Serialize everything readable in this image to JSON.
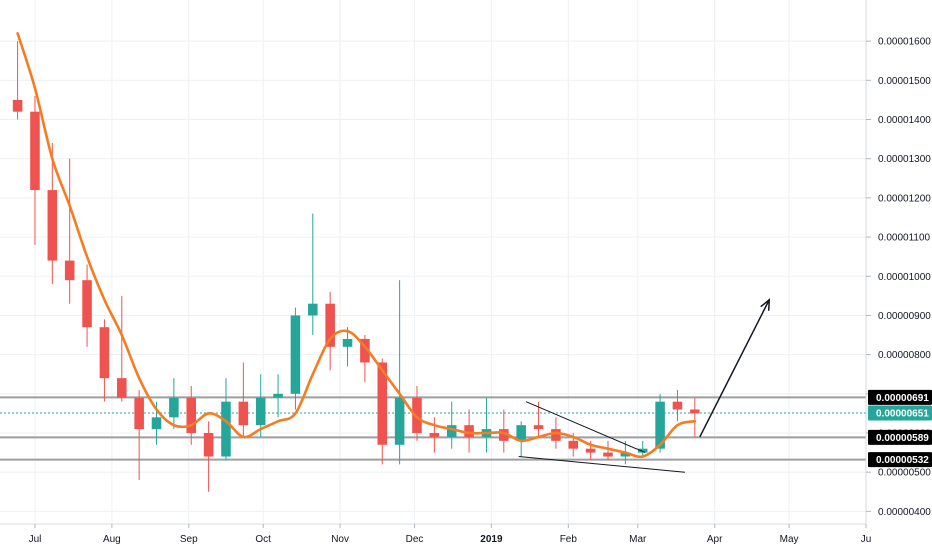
{
  "chart_data": {
    "type": "candlestick",
    "x_ticks": [
      "Jul",
      "Aug",
      "Sep",
      "Oct",
      "Nov",
      "Dec",
      "2019",
      "Feb",
      "Mar",
      "Apr",
      "May",
      "Ju"
    ],
    "y_ticks": [
      "0.00001600",
      "0.00001500",
      "0.00001400",
      "0.00001300",
      "0.00001200",
      "0.00001100",
      "0.00001000",
      "0.00000900",
      "0.00000800",
      "0.00000700",
      "0.00000600",
      "0.00000500",
      "0.00000400"
    ],
    "ylim": [
      3.78e-06,
      1.705e-05
    ],
    "grid": true,
    "horizontal_levels": [
      {
        "label": "0.00000691",
        "value": 6.91e-06
      },
      {
        "label": "0.00000589",
        "value": 5.89e-06
      },
      {
        "label": "0.00000532",
        "value": 5.32e-06
      }
    ],
    "last_price": {
      "label": "0.00000651",
      "value": 6.51e-06
    },
    "moving_average": [
      {
        "date": "2018-06-24",
        "value": 1.62e-05
      },
      {
        "date": "2018-07-01",
        "value": 1.48e-05
      },
      {
        "date": "2018-07-08",
        "value": 1.3e-05
      },
      {
        "date": "2018-07-15",
        "value": 1.18e-05
      },
      {
        "date": "2018-07-22",
        "value": 1.05e-05
      },
      {
        "date": "2018-07-29",
        "value": 9.4e-06
      },
      {
        "date": "2018-08-05",
        "value": 8.5e-06
      },
      {
        "date": "2018-08-12",
        "value": 7.4e-06
      },
      {
        "date": "2018-08-19",
        "value": 6.6e-06
      },
      {
        "date": "2018-08-26",
        "value": 6.2e-06
      },
      {
        "date": "2018-09-02",
        "value": 6.2e-06
      },
      {
        "date": "2018-09-09",
        "value": 6.5e-06
      },
      {
        "date": "2018-09-16",
        "value": 6.3e-06
      },
      {
        "date": "2018-09-23",
        "value": 5.9e-06
      },
      {
        "date": "2018-09-30",
        "value": 6.1e-06
      },
      {
        "date": "2018-10-07",
        "value": 6.3e-06
      },
      {
        "date": "2018-10-14",
        "value": 6.5e-06
      },
      {
        "date": "2018-10-21",
        "value": 7.5e-06
      },
      {
        "date": "2018-10-28",
        "value": 8.4e-06
      },
      {
        "date": "2018-11-04",
        "value": 8.6e-06
      },
      {
        "date": "2018-11-11",
        "value": 8.2e-06
      },
      {
        "date": "2018-11-18",
        "value": 7.6e-06
      },
      {
        "date": "2018-11-25",
        "value": 7e-06
      },
      {
        "date": "2018-12-02",
        "value": 6.4e-06
      },
      {
        "date": "2018-12-09",
        "value": 6.2e-06
      },
      {
        "date": "2018-12-16",
        "value": 6.1e-06
      },
      {
        "date": "2018-12-23",
        "value": 6e-06
      },
      {
        "date": "2018-12-30",
        "value": 6e-06
      },
      {
        "date": "2019-01-06",
        "value": 6e-06
      },
      {
        "date": "2019-01-13",
        "value": 5.8e-06
      },
      {
        "date": "2019-01-20",
        "value": 5.9e-06
      },
      {
        "date": "2019-01-27",
        "value": 6e-06
      },
      {
        "date": "2019-02-03",
        "value": 5.9e-06
      },
      {
        "date": "2019-02-10",
        "value": 5.7e-06
      },
      {
        "date": "2019-02-17",
        "value": 5.6e-06
      },
      {
        "date": "2019-02-24",
        "value": 5.5e-06
      },
      {
        "date": "2019-03-03",
        "value": 5.4e-06
      },
      {
        "date": "2019-03-10",
        "value": 5.7e-06
      },
      {
        "date": "2019-03-17",
        "value": 6.2e-06
      },
      {
        "date": "2019-03-24",
        "value": 6.3e-06
      }
    ],
    "candles": [
      {
        "date": "2018-06-24",
        "open": 1.45e-05,
        "high": 1.6e-05,
        "low": 1.4e-05,
        "close": 1.42e-05
      },
      {
        "date": "2018-07-01",
        "open": 1.42e-05,
        "high": 1.46e-05,
        "low": 1.08e-05,
        "close": 1.22e-05
      },
      {
        "date": "2018-07-08",
        "open": 1.22e-05,
        "high": 1.34e-05,
        "low": 9.8e-06,
        "close": 1.04e-05
      },
      {
        "date": "2018-07-15",
        "open": 1.04e-05,
        "high": 1.3e-05,
        "low": 9.3e-06,
        "close": 9.9e-06
      },
      {
        "date": "2018-07-22",
        "open": 9.9e-06,
        "high": 1.03e-05,
        "low": 8.2e-06,
        "close": 8.7e-06
      },
      {
        "date": "2018-07-29",
        "open": 8.7e-06,
        "high": 8.9e-06,
        "low": 6.8e-06,
        "close": 7.4e-06
      },
      {
        "date": "2018-08-05",
        "open": 7.4e-06,
        "high": 9.5e-06,
        "low": 6.8e-06,
        "close": 6.9e-06
      },
      {
        "date": "2018-08-12",
        "open": 6.9e-06,
        "high": 7.1e-06,
        "low": 4.8e-06,
        "close": 6.1e-06
      },
      {
        "date": "2018-08-19",
        "open": 6.1e-06,
        "high": 6.8e-06,
        "low": 5.7e-06,
        "close": 6.4e-06
      },
      {
        "date": "2018-08-26",
        "open": 6.4e-06,
        "high": 7.4e-06,
        "low": 6.1e-06,
        "close": 6.9e-06
      },
      {
        "date": "2018-09-02",
        "open": 6.9e-06,
        "high": 7.2e-06,
        "low": 5.7e-06,
        "close": 6e-06
      },
      {
        "date": "2018-09-09",
        "open": 6e-06,
        "high": 6.3e-06,
        "low": 4.5e-06,
        "close": 5.4e-06
      },
      {
        "date": "2018-09-16",
        "open": 5.4e-06,
        "high": 7.4e-06,
        "low": 5.3e-06,
        "close": 6.8e-06
      },
      {
        "date": "2018-09-23",
        "open": 6.8e-06,
        "high": 7.8e-06,
        "low": 5.9e-06,
        "close": 6.2e-06
      },
      {
        "date": "2018-09-30",
        "open": 6.2e-06,
        "high": 7.5e-06,
        "low": 5.9e-06,
        "close": 6.9e-06
      },
      {
        "date": "2018-10-07",
        "open": 6.9e-06,
        "high": 7.5e-06,
        "low": 6.4e-06,
        "close": 7e-06
      },
      {
        "date": "2018-10-14",
        "open": 7e-06,
        "high": 9.2e-06,
        "low": 6.6e-06,
        "close": 9e-06
      },
      {
        "date": "2018-10-21",
        "open": 9e-06,
        "high": 1.16e-05,
        "low": 8.5e-06,
        "close": 9.3e-06
      },
      {
        "date": "2018-10-28",
        "open": 9.3e-06,
        "high": 9.6e-06,
        "low": 7.6e-06,
        "close": 8.2e-06
      },
      {
        "date": "2018-11-04",
        "open": 8.2e-06,
        "high": 8.7e-06,
        "low": 7.7e-06,
        "close": 8.4e-06
      },
      {
        "date": "2018-11-11",
        "open": 8.4e-06,
        "high": 8.5e-06,
        "low": 7.3e-06,
        "close": 7.8e-06
      },
      {
        "date": "2018-11-18",
        "open": 7.8e-06,
        "high": 7.9e-06,
        "low": 5.2e-06,
        "close": 5.7e-06
      },
      {
        "date": "2018-11-25",
        "open": 5.7e-06,
        "high": 9.9e-06,
        "low": 5.2e-06,
        "close": 6.9e-06
      },
      {
        "date": "2018-12-02",
        "open": 6.9e-06,
        "high": 7.2e-06,
        "low": 5.8e-06,
        "close": 6e-06
      },
      {
        "date": "2018-12-09",
        "open": 6e-06,
        "high": 6.4e-06,
        "low": 5.5e-06,
        "close": 5.9e-06
      },
      {
        "date": "2018-12-16",
        "open": 5.9e-06,
        "high": 6.8e-06,
        "low": 5.6e-06,
        "close": 6.2e-06
      },
      {
        "date": "2018-12-23",
        "open": 6.2e-06,
        "high": 6.6e-06,
        "low": 5.5e-06,
        "close": 5.9e-06
      },
      {
        "date": "2018-12-30",
        "open": 5.9e-06,
        "high": 6.9e-06,
        "low": 5.5e-06,
        "close": 6.1e-06
      },
      {
        "date": "2019-01-06",
        "open": 6.1e-06,
        "high": 6.6e-06,
        "low": 5.5e-06,
        "close": 5.8e-06
      },
      {
        "date": "2019-01-13",
        "open": 5.8e-06,
        "high": 6.3e-06,
        "low": 5.4e-06,
        "close": 6.2e-06
      },
      {
        "date": "2019-01-20",
        "open": 6.2e-06,
        "high": 6.8e-06,
        "low": 5.9e-06,
        "close": 6.1e-06
      },
      {
        "date": "2019-01-27",
        "open": 6.1e-06,
        "high": 6.4e-06,
        "low": 5.6e-06,
        "close": 5.8e-06
      },
      {
        "date": "2019-02-03",
        "open": 5.8e-06,
        "high": 6e-06,
        "low": 5.4e-06,
        "close": 5.6e-06
      },
      {
        "date": "2019-02-10",
        "open": 5.6e-06,
        "high": 5.8e-06,
        "low": 5.3e-06,
        "close": 5.5e-06
      },
      {
        "date": "2019-02-17",
        "open": 5.5e-06,
        "high": 5.8e-06,
        "low": 5.3e-06,
        "close": 5.4e-06
      },
      {
        "date": "2019-02-24",
        "open": 5.4e-06,
        "high": 5.8e-06,
        "low": 5.2e-06,
        "close": 5.5e-06
      },
      {
        "date": "2019-03-03",
        "open": 5.5e-06,
        "high": 5.8e-06,
        "low": 5.4e-06,
        "close": 5.6e-06
      },
      {
        "date": "2019-03-10",
        "open": 5.6e-06,
        "high": 7e-06,
        "low": 5.5e-06,
        "close": 6.8e-06
      },
      {
        "date": "2019-03-17",
        "open": 6.8e-06,
        "high": 7.1e-06,
        "low": 6.3e-06,
        "close": 6.6e-06
      },
      {
        "date": "2019-03-24",
        "open": 6.6e-06,
        "high": 6.9e-06,
        "low": 5.9e-06,
        "close": 6.5e-06
      }
    ],
    "annotations": {
      "wedge_upper": [
        {
          "date": "2019-01-15",
          "value": 6.8e-06
        },
        {
          "date": "2019-03-04",
          "value": 5.5e-06
        }
      ],
      "wedge_lower": [
        {
          "date": "2019-01-12",
          "value": 5.4e-06
        },
        {
          "date": "2019-03-20",
          "value": 5e-06
        }
      ],
      "projection_arrow": [
        {
          "date": "2019-03-26",
          "value": 5.9e-06
        },
        {
          "date": "2019-04-23",
          "value": 9.4e-06
        }
      ]
    }
  },
  "colors": {
    "up": "#26a69a",
    "down": "#ef5350",
    "moving_average": "#f57c20",
    "level_line": "#9e9e9e",
    "last_price": "#26a69a",
    "badge": "#000000",
    "grid": "#eef0f3",
    "annotation": "#131722"
  }
}
